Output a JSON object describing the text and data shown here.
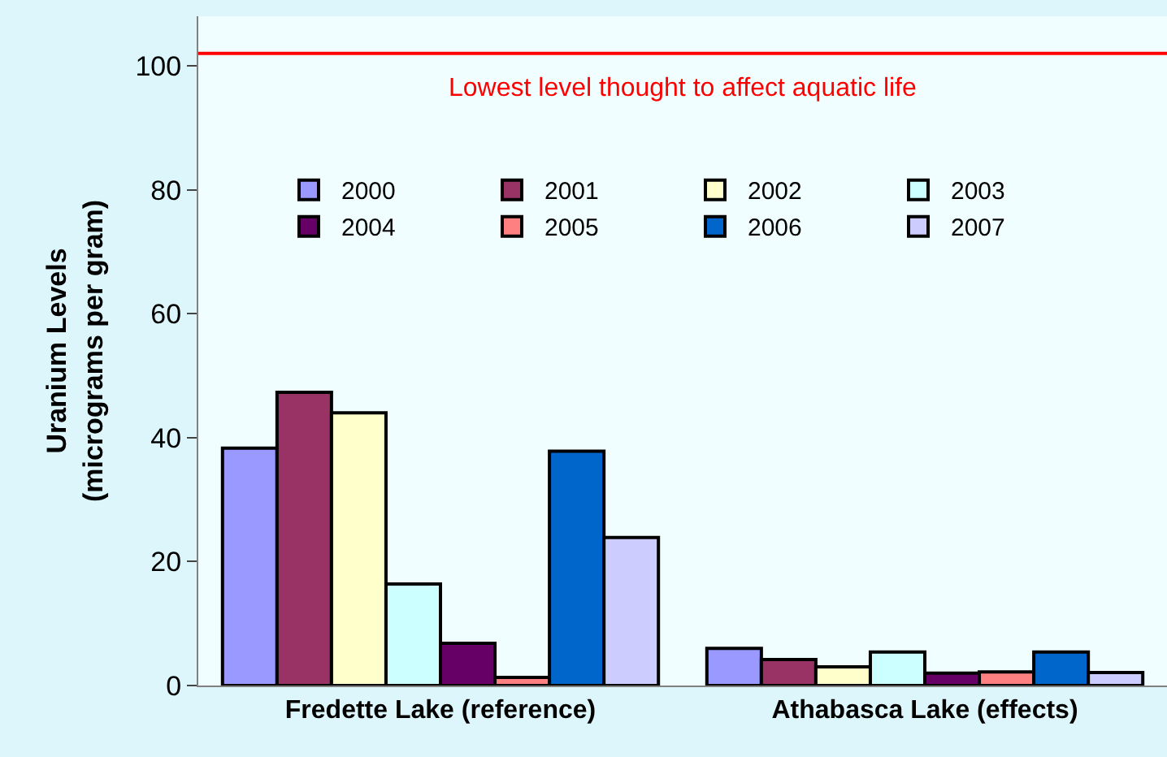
{
  "chart_data": {
    "type": "bar",
    "ylabel": "Uranium Levels\n(micrograms per gram)",
    "categories": [
      "Fredette Lake (reference)",
      "Athabasca Lake (effects)"
    ],
    "series": [
      {
        "name": "2000",
        "color": "#9999ff",
        "values": [
          38.3,
          6.0
        ]
      },
      {
        "name": "2001",
        "color": "#993366",
        "values": [
          47.3,
          4.2
        ]
      },
      {
        "name": "2002",
        "color": "#ffffcc",
        "values": [
          44,
          3.0
        ]
      },
      {
        "name": "2003",
        "color": "#ccffff",
        "values": [
          16.4,
          5.4
        ]
      },
      {
        "name": "2004",
        "color": "#660066",
        "values": [
          6.8,
          2.0
        ]
      },
      {
        "name": "2005",
        "color": "#ff8080",
        "values": [
          1.3,
          2.2
        ]
      },
      {
        "name": "2006",
        "color": "#0066cc",
        "values": [
          37.8,
          5.4
        ]
      },
      {
        "name": "2007",
        "color": "#ccccff",
        "values": [
          23.9,
          2.1
        ]
      }
    ],
    "ylim": [
      0,
      108
    ],
    "yticks": [
      0,
      20,
      40,
      60,
      80,
      100
    ],
    "grid": false,
    "legend": "top",
    "ref_lines": [
      {
        "axis": "y",
        "value": 102,
        "label": "Lowest level thought to affect aquatic life",
        "color": "#ff0000"
      }
    ]
  }
}
